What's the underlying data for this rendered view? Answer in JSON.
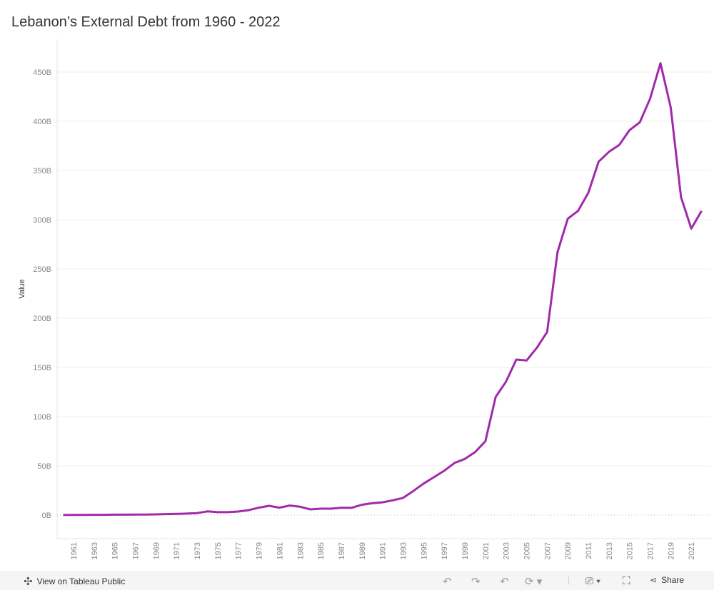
{
  "title": "Lebanon’s External Debt from 1960 - 2022",
  "footer": {
    "view_label": "View on Tableau Public",
    "share_label": "Share",
    "icons": [
      "tableau-logo-icon",
      "undo-icon",
      "redo-icon",
      "revert-icon",
      "refresh-icon",
      "download-icon",
      "fullscreen-icon",
      "share-icon"
    ]
  },
  "chart_data": {
    "type": "line",
    "title": "Lebanon’s External Debt from 1960 - 2022",
    "xlabel": "",
    "ylabel": "Value",
    "ylim": [
      0,
      480
    ],
    "yticks": [
      0,
      50,
      100,
      150,
      200,
      250,
      300,
      350,
      400,
      450
    ],
    "ytick_labels": [
      "0B",
      "50B",
      "100B",
      "150B",
      "200B",
      "250B",
      "300B",
      "350B",
      "400B",
      "450B"
    ],
    "xtick_labels": [
      "1961",
      "1963",
      "1965",
      "1967",
      "1969",
      "1971",
      "1973",
      "1975",
      "1977",
      "1979",
      "1981",
      "1983",
      "1985",
      "1987",
      "1989",
      "1991",
      "1993",
      "1995",
      "1997",
      "1999",
      "2001",
      "2003",
      "2005",
      "2007",
      "2009",
      "2011",
      "2013",
      "2015",
      "2017",
      "2019",
      "2021"
    ],
    "grid": true,
    "color": "#a12aab",
    "x": [
      1960,
      1961,
      1962,
      1963,
      1964,
      1965,
      1966,
      1967,
      1968,
      1969,
      1970,
      1971,
      1972,
      1973,
      1974,
      1975,
      1976,
      1977,
      1978,
      1979,
      1980,
      1981,
      1982,
      1983,
      1984,
      1985,
      1986,
      1987,
      1988,
      1989,
      1990,
      1991,
      1992,
      1993,
      1994,
      1995,
      1996,
      1997,
      1998,
      1999,
      2000,
      2001,
      2002,
      2003,
      2004,
      2005,
      2006,
      2007,
      2008,
      2009,
      2010,
      2011,
      2012,
      2013,
      2014,
      2015,
      2016,
      2017,
      2018,
      2019,
      2020,
      2021,
      2022
    ],
    "values": [
      0.1,
      0.2,
      0.2,
      0.3,
      0.3,
      0.4,
      0.4,
      0.5,
      0.5,
      0.7,
      1.0,
      1.2,
      1.5,
      2.0,
      3.8,
      3.0,
      3.0,
      3.6,
      5.0,
      7.5,
      9.4,
      7.5,
      9.7,
      8.5,
      5.8,
      6.5,
      6.5,
      7.4,
      7.4,
      10.5,
      12,
      13,
      15,
      17.5,
      24.5,
      32,
      38.5,
      45,
      53,
      57,
      64,
      75,
      120,
      135.5,
      158,
      157,
      170,
      186,
      267,
      301,
      309,
      327.5,
      359,
      369,
      376,
      391,
      399,
      423,
      459,
      414,
      323,
      291,
      309
    ]
  }
}
